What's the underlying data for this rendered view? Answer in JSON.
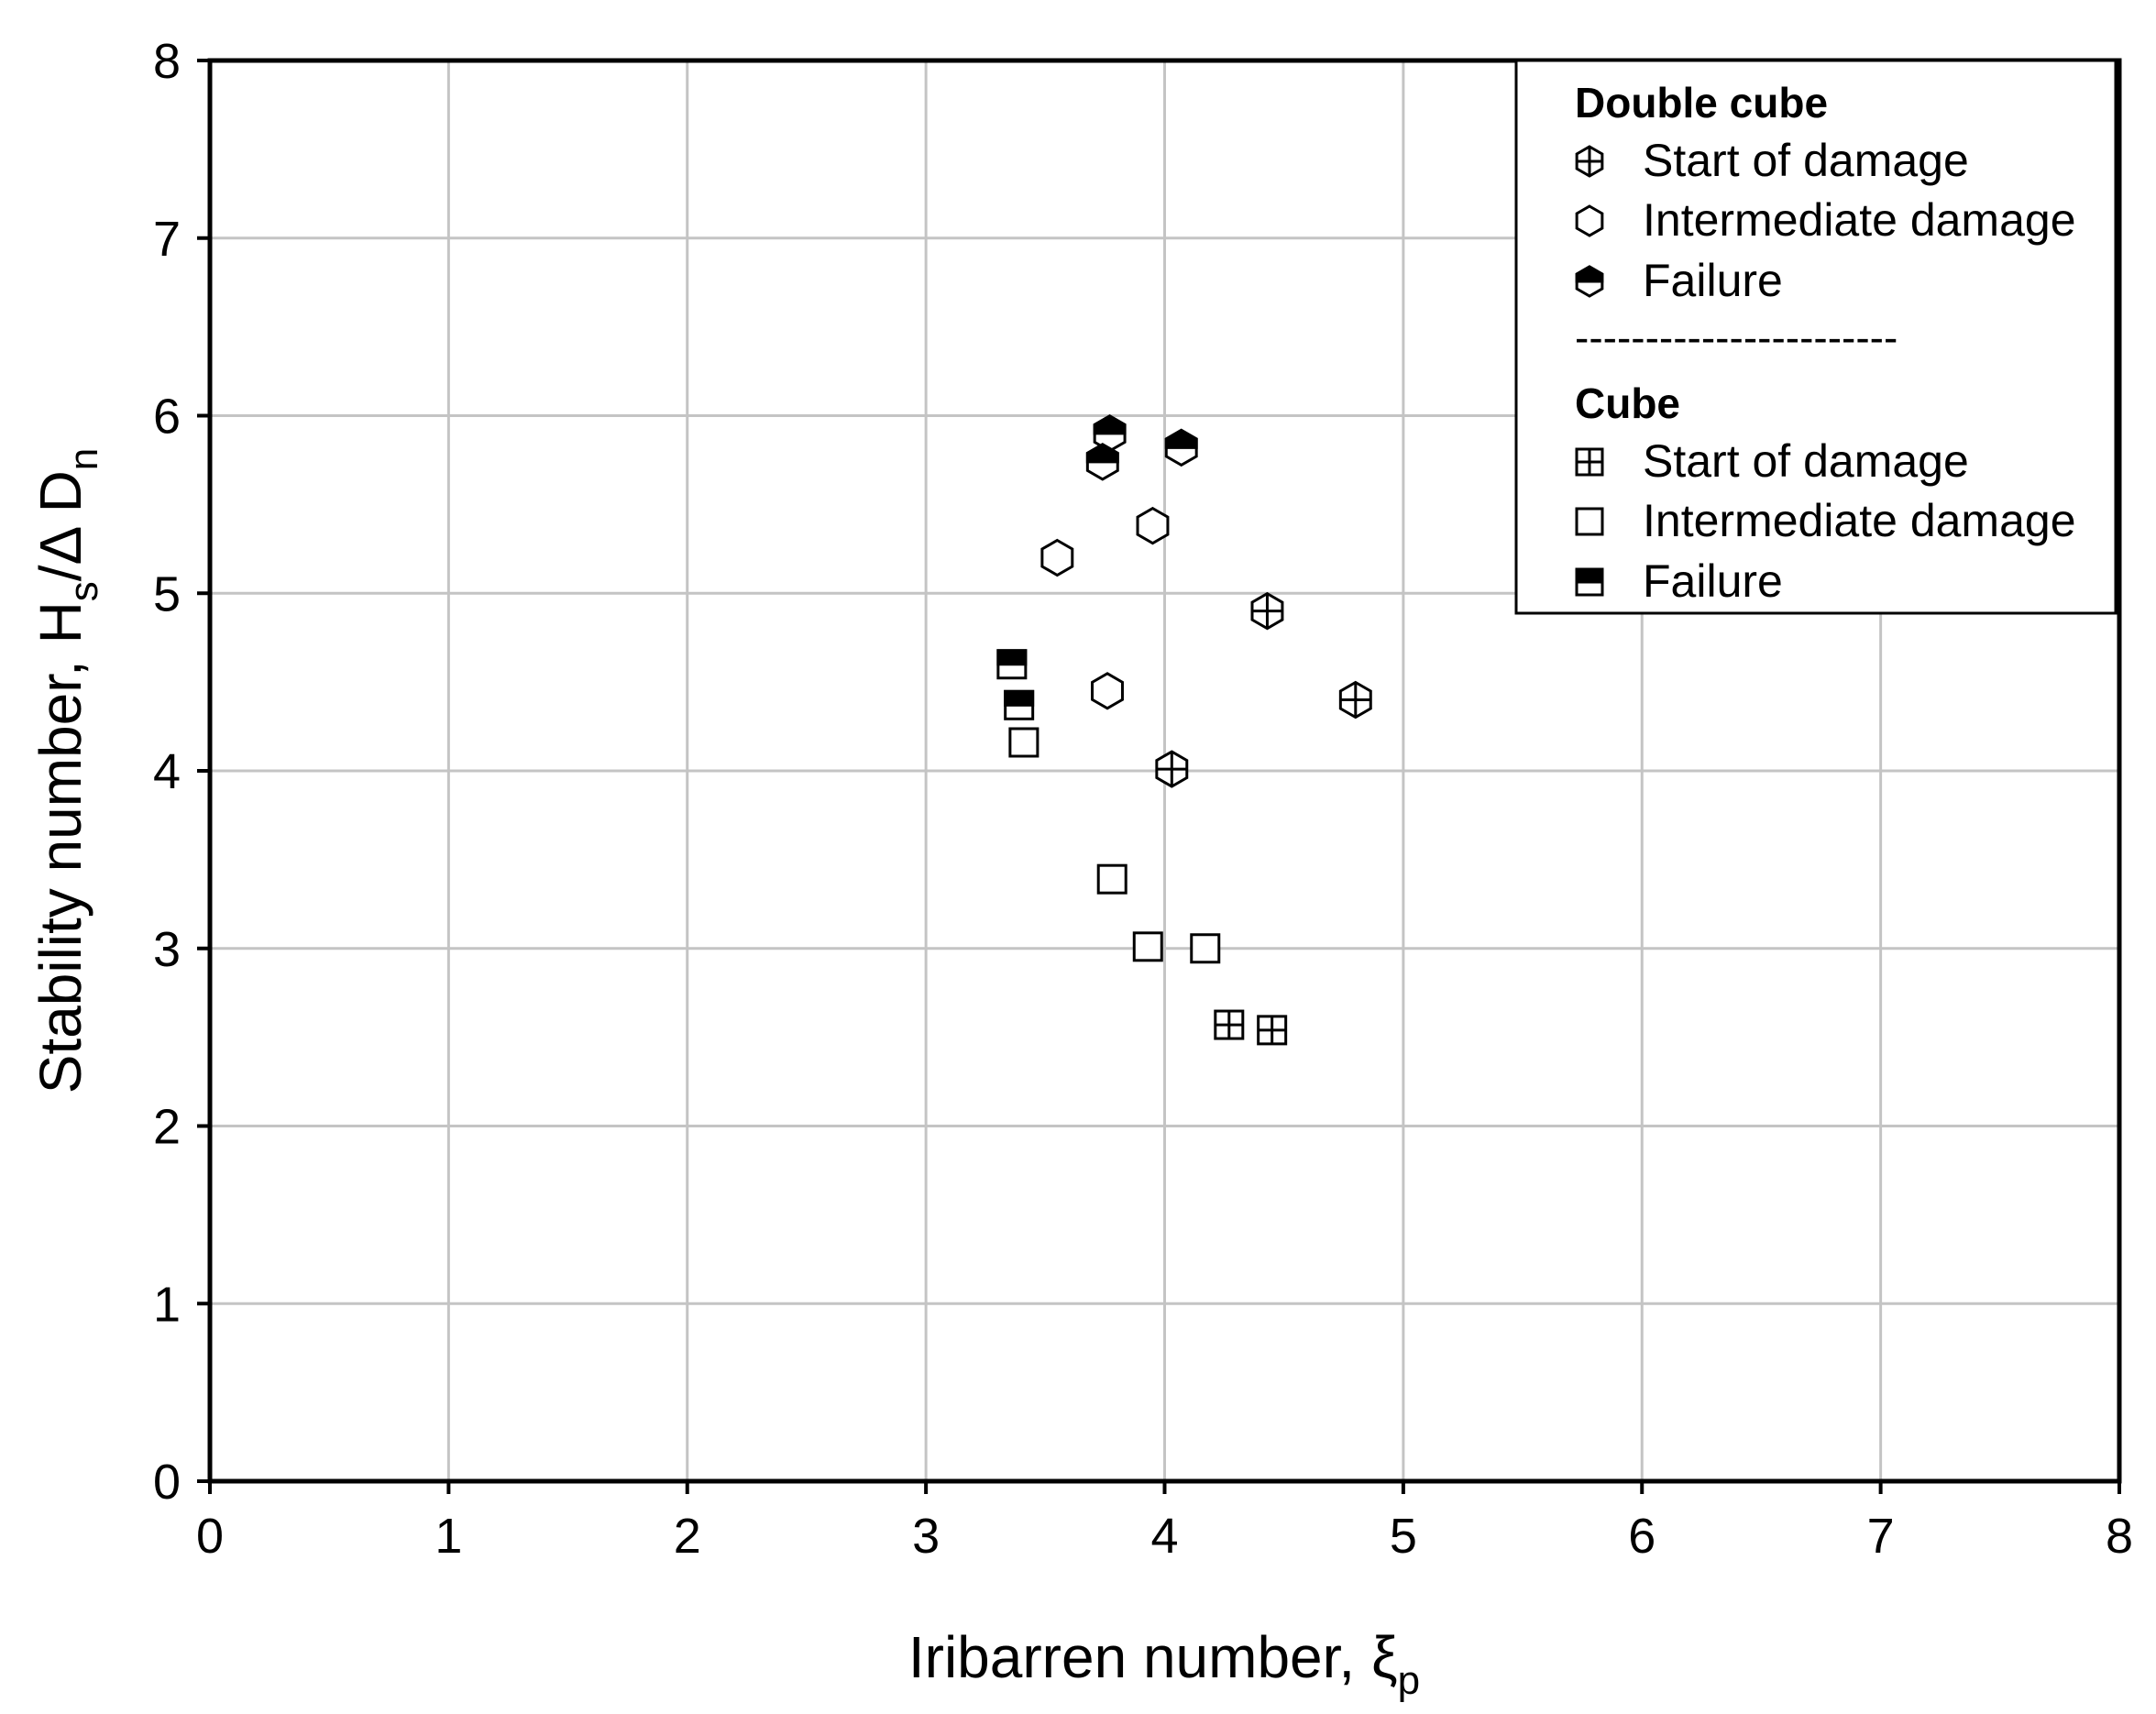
{
  "chart_data": {
    "type": "scatter",
    "xlabel": "Iribarren number, ξ",
    "xlabel_sub": "p",
    "ylabel": "Stability number, H",
    "ylabel_sub1": "s",
    "ylabel_mid": "/Δ D",
    "ylabel_sub2": "n",
    "xlim": [
      0,
      8
    ],
    "ylim": [
      0,
      8
    ],
    "xticks": [
      "0",
      "1",
      "2",
      "3",
      "4",
      "5",
      "6",
      "7",
      "8"
    ],
    "yticks": [
      "0",
      "1",
      "2",
      "3",
      "4",
      "5",
      "6",
      "7",
      "8"
    ],
    "grid": true,
    "legend_position": "top-right",
    "legend_groups": [
      {
        "title": "Double cube",
        "entries": [
          {
            "label": "Start of damage",
            "marker": "hex-cross"
          },
          {
            "label": "Intermediate damage",
            "marker": "hex-open"
          },
          {
            "label": "Failure",
            "marker": "hex-half"
          }
        ]
      },
      {
        "title": "Cube",
        "entries": [
          {
            "label": "Start of damage",
            "marker": "square-cross"
          },
          {
            "label": "Intermediate damage",
            "marker": "square-open"
          },
          {
            "label": "Failure",
            "marker": "square-half"
          }
        ]
      }
    ],
    "legend_separator": "-----------------------",
    "series": [
      {
        "group": "Double cube",
        "name": "Start of damage",
        "marker": "hex-cross",
        "points": [
          [
            4.43,
            4.9
          ],
          [
            4.8,
            4.4
          ],
          [
            4.03,
            4.01
          ]
        ]
      },
      {
        "group": "Double cube",
        "name": "Intermediate damage",
        "marker": "hex-open",
        "points": [
          [
            3.55,
            5.2
          ],
          [
            3.95,
            5.38
          ],
          [
            3.76,
            4.45
          ]
        ]
      },
      {
        "group": "Double cube",
        "name": "Failure",
        "marker": "hex-half",
        "points": [
          [
            3.77,
            5.9
          ],
          [
            3.74,
            5.74
          ],
          [
            4.07,
            5.82
          ]
        ]
      },
      {
        "group": "Cube",
        "name": "Start of damage",
        "marker": "square-cross",
        "points": [
          [
            4.27,
            2.57
          ],
          [
            4.45,
            2.54
          ]
        ]
      },
      {
        "group": "Cube",
        "name": "Intermediate damage",
        "marker": "square-open",
        "points": [
          [
            3.41,
            4.16
          ],
          [
            3.78,
            3.39
          ],
          [
            3.93,
            3.01
          ],
          [
            4.17,
            3.0
          ]
        ]
      },
      {
        "group": "Cube",
        "name": "Failure",
        "marker": "square-half",
        "points": [
          [
            3.36,
            4.6
          ],
          [
            3.39,
            4.37
          ]
        ]
      }
    ]
  }
}
